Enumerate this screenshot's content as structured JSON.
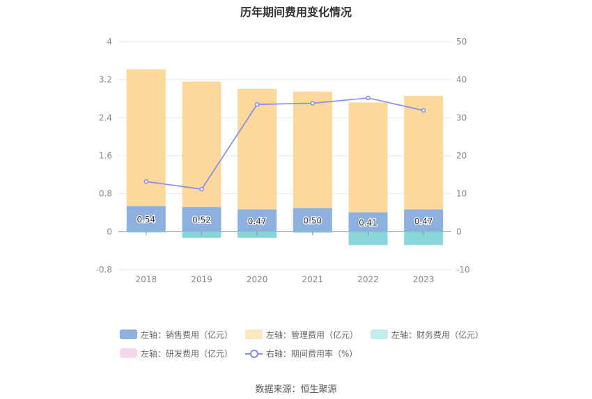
{
  "chart_data": {
    "type": "bar",
    "title": "历年期间费用变化情况",
    "categories": [
      "2018",
      "2019",
      "2020",
      "2021",
      "2022",
      "2023"
    ],
    "left_axis": {
      "ylim": [
        -0.8,
        4
      ],
      "ticks": [
        "-0.8",
        "0",
        "0.8",
        "1.6",
        "2.4",
        "3.2",
        "4"
      ]
    },
    "right_axis": {
      "ylim": [
        -10,
        50
      ],
      "ticks": [
        "-10",
        "0",
        "10",
        "20",
        "30",
        "40",
        "50"
      ]
    },
    "series": [
      {
        "name": "左轴：销售费用（亿元）",
        "type": "bar",
        "axis": "left",
        "color": "#8eb0de",
        "values": [
          0.54,
          0.52,
          0.47,
          0.5,
          0.41,
          0.47
        ],
        "labels": [
          "0.54",
          "0.52",
          "0.47",
          "0.50",
          "0.41",
          "0.47"
        ]
      },
      {
        "name": "左轴：管理费用（亿元）",
        "type": "bar",
        "axis": "left",
        "color": "#fdd89c",
        "values": [
          2.88,
          2.64,
          2.54,
          2.45,
          2.31,
          2.39
        ]
      },
      {
        "name": "左轴：财务费用（亿元）",
        "type": "bar",
        "axis": "left",
        "color": "#88d6d9",
        "values": [
          -0.005,
          -0.13,
          -0.13,
          -0.02,
          -0.28,
          -0.28
        ]
      },
      {
        "name": "左轴：研发费用（亿元）",
        "type": "bar",
        "axis": "left",
        "color": "#f4d7ee",
        "values": [
          0,
          0,
          0,
          0,
          0,
          0
        ]
      },
      {
        "name": "右轴：期间费用率（%）",
        "type": "line",
        "axis": "right",
        "color": "#8189e8",
        "values": [
          13.2,
          11.2,
          33.5,
          33.8,
          35.2,
          31.9
        ]
      }
    ],
    "grid": true,
    "legend_position": "bottom"
  },
  "source": "数据来源：恒生聚源"
}
